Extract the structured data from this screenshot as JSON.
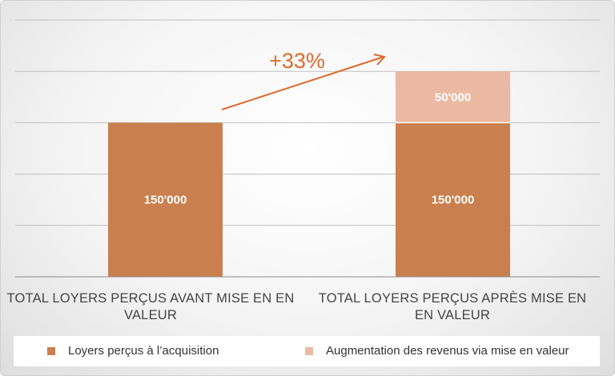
{
  "chart_data": {
    "type": "bar",
    "stacked": true,
    "categories": [
      "TOTAL LOYERS PERÇUS AVANT MISE EN EN VALEUR",
      "TOTAL LOYERS PERÇUS APRÈS MISE EN EN VALEUR"
    ],
    "series": [
      {
        "name": "Loyers perçus à l’acquisition",
        "values": [
          150000,
          150000
        ],
        "labels": [
          "150'000",
          "150'000"
        ],
        "color": "#C9804E"
      },
      {
        "name": "Augmentation des revenus via mise en valeur",
        "values": [
          0,
          50000
        ],
        "labels": [
          "",
          "50'000"
        ],
        "color": "#EBB9A1"
      }
    ],
    "ylim": [
      0,
      250000
    ],
    "grid": true,
    "legend_position": "bottom",
    "annotation": {
      "text": "+33%",
      "color": "#E06A2B"
    },
    "gridline_color": "#bfbfbf",
    "axis_color": "#8c8c8c"
  }
}
